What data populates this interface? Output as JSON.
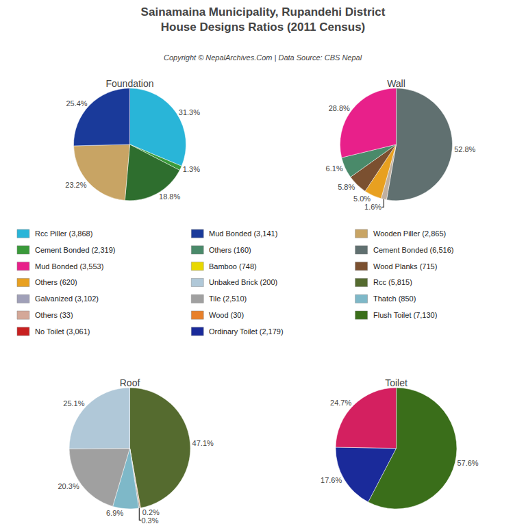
{
  "title": "Sainamaina Municipality, Rupandehi District",
  "subtitle": "House Designs Ratios (2011 Census)",
  "annotations": [
    "Copyright © NepalArchives.Com | Data Source: CBS Nepal"
  ],
  "chart_data": [
    {
      "type": "pie",
      "title": "Foundation",
      "values": [
        31.3,
        1.3,
        18.8,
        23.2,
        25.4
      ],
      "value_labels": [
        "31.3%",
        "1.3%",
        "18.8%",
        "23.2%",
        "25.4%"
      ],
      "colors": [
        "#29B5D8",
        "#3A9A3A",
        "#2E6E2E",
        "#C8A464",
        "#1A3A9A"
      ],
      "data_labels": true
    },
    {
      "type": "pie",
      "title": "Wall",
      "values": [
        52.8,
        1.6,
        5.0,
        5.8,
        6.1,
        28.8
      ],
      "value_labels": [
        "52.8%",
        "1.6%",
        "5.0%",
        "5.8%",
        "6.1%",
        "28.8%"
      ],
      "colors": [
        "#607070",
        "#C0B0A0",
        "#E8A020",
        "#7B5030",
        "#4A8A6A",
        "#E8208A"
      ],
      "data_labels": true
    },
    {
      "type": "pie",
      "title": "Roof",
      "values": [
        47.1,
        0.2,
        0.3,
        6.9,
        20.3,
        25.1
      ],
      "value_labels": [
        "47.1%",
        "0.2%",
        "0.3%",
        "6.9%",
        "20.3%",
        "25.1%"
      ],
      "colors": [
        "#556B2F",
        "#E8802A",
        "#909090",
        "#7EB8C8",
        "#A0A0A0",
        "#B0C8D8"
      ],
      "data_labels": true
    },
    {
      "type": "pie",
      "title": "Toilet",
      "values": [
        57.6,
        17.6,
        24.7
      ],
      "value_labels": [
        "57.6%",
        "17.6%",
        "24.7%"
      ],
      "colors": [
        "#3A6E1A",
        "#1A2A9A",
        "#D42060"
      ],
      "data_labels": true
    }
  ],
  "legend_entries": [
    {
      "name": "Rcc Piller (3,868)",
      "color": "#29B5D8"
    },
    {
      "name": "Mud Bonded (3,141)",
      "color": "#1A3A9A"
    },
    {
      "name": "Wooden Piller (2,865)",
      "color": "#C8A464"
    },
    {
      "name": "Cement Bonded (2,319)",
      "color": "#3A9A3A"
    },
    {
      "name": "Others (160)",
      "color": "#4A8A6A"
    },
    {
      "name": "Cement Bonded (6,516)",
      "color": "#607070"
    },
    {
      "name": "Mud Bonded (3,553)",
      "color": "#E8208A"
    },
    {
      "name": "Bamboo (748)",
      "color": "#E8D800"
    },
    {
      "name": "Wood Planks (715)",
      "color": "#7B5030"
    },
    {
      "name": "Others (620)",
      "color": "#E8A020"
    },
    {
      "name": "Unbaked Brick (200)",
      "color": "#B0C8D8"
    },
    {
      "name": "Rcc (5,815)",
      "color": "#556B2F"
    },
    {
      "name": "Galvanized (3,102)",
      "color": "#A0A0B8"
    },
    {
      "name": "Tile (2,510)",
      "color": "#A0A0A0"
    },
    {
      "name": "Thatch (850)",
      "color": "#7EB8C8"
    },
    {
      "name": "Others (33)",
      "color": "#D4A898"
    },
    {
      "name": "Wood (30)",
      "color": "#E8802A"
    },
    {
      "name": "Flush Toilet (7,130)",
      "color": "#3A6E1A"
    },
    {
      "name": "No Toilet (3,061)",
      "color": "#C82020"
    },
    {
      "name": "Ordinary Toilet (2,179)",
      "color": "#1A2A9A"
    }
  ]
}
